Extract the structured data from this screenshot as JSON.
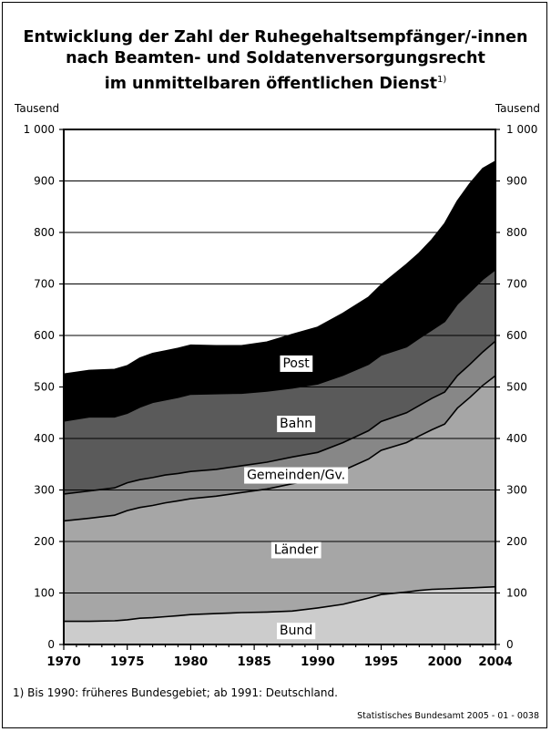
{
  "title": {
    "line1": "Entwicklung der Zahl der Ruhegehaltsempfänger/-innen",
    "line2": "nach Beamten- und Soldatenversorgungsrecht",
    "line3": "im unmittelbaren öffentlichen Dienst",
    "footnote_marker": "1)"
  },
  "unit_left": "Tausend",
  "unit_right": "Tausend",
  "footnote": "1) Bis 1990: früheres Bundesgebiet; ab 1991: Deutschland.",
  "source": "Statistisches Bundesamt 2005 - 01 - 0038",
  "chart_data": {
    "type": "area",
    "stacked": true,
    "ylim": [
      0,
      1000
    ],
    "xlim": [
      1970,
      2004
    ],
    "yticks": [
      0,
      100,
      200,
      300,
      400,
      500,
      600,
      700,
      800,
      900,
      1000
    ],
    "ytick_labels": [
      "0",
      "100",
      "200",
      "300",
      "400",
      "500",
      "600",
      "700",
      "800",
      "900",
      "1 000"
    ],
    "xticks": [
      1970,
      1975,
      1980,
      1985,
      1990,
      1995,
      2000,
      2004
    ],
    "grid": true,
    "x": [
      1970,
      1972,
      1974,
      1975,
      1976,
      1977,
      1978,
      1979,
      1980,
      1982,
      1984,
      1986,
      1988,
      1990,
      1992,
      1994,
      1995,
      1997,
      1998,
      1999,
      2000,
      2001,
      2002,
      2003,
      2004
    ],
    "series": [
      {
        "name": "Bund",
        "color": "#cccccc",
        "values": [
          45,
          45,
          46,
          48,
          51,
          52,
          54,
          56,
          58,
          60,
          62,
          63,
          65,
          71,
          78,
          90,
          97,
          102,
          105,
          107,
          108,
          109,
          110,
          111,
          112
        ]
      },
      {
        "name": "Länder",
        "color": "#a6a6a6",
        "values": [
          195,
          200,
          205,
          212,
          215,
          218,
          221,
          223,
          225,
          228,
          233,
          239,
          247,
          250,
          260,
          270,
          280,
          290,
          300,
          310,
          320,
          350,
          370,
          392,
          410
        ]
      },
      {
        "name": "Gemeinden/Gv.",
        "color": "#878787",
        "values": [
          52,
          53,
          53,
          54,
          54,
          54,
          54,
          53,
          53,
          52,
          52,
          52,
          52,
          52,
          54,
          55,
          56,
          58,
          59,
          61,
          62,
          63,
          64,
          65,
          67
        ]
      },
      {
        "name": "Bahn",
        "color": "#5a5a5a",
        "values": [
          142,
          144,
          138,
          135,
          141,
          146,
          146,
          148,
          150,
          147,
          141,
          138,
          134,
          133,
          131,
          129,
          129,
          128,
          131,
          133,
          137,
          139,
          141,
          141,
          139
        ]
      },
      {
        "name": "Post",
        "color": "#000000",
        "values": [
          91,
          90,
          92,
          92,
          95,
          95,
          95,
          95,
          95,
          93,
          92,
          95,
          104,
          110,
          120,
          130,
          136,
          160,
          165,
          175,
          190,
          200,
          210,
          215,
          210
        ]
      }
    ],
    "labels": [
      {
        "series": "Post",
        "text": "Post",
        "x": 1988.3,
        "y": 547
      },
      {
        "series": "Bahn",
        "text": "Bahn",
        "x": 1988.3,
        "y": 430
      },
      {
        "series": "Gemeinden/Gv.",
        "text": "Gemeinden/Gv.",
        "x": 1988.3,
        "y": 330
      },
      {
        "series": "Länder",
        "text": "Länder",
        "x": 1988.3,
        "y": 185
      },
      {
        "series": "Bund",
        "text": "Bund",
        "x": 1988.3,
        "y": 28
      }
    ]
  }
}
